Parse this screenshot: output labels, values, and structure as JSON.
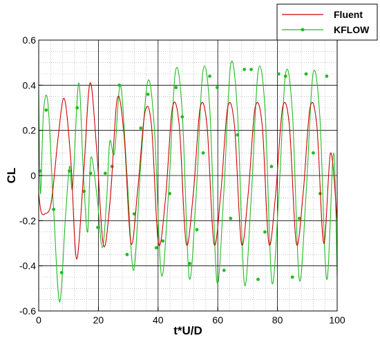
{
  "chart_data": {
    "type": "line",
    "title": "",
    "xlabel": "t*U/D",
    "ylabel": "CL",
    "xlim": [
      0,
      100
    ],
    "ylim": [
      -0.6,
      0.6
    ],
    "x_ticks": [
      0,
      20,
      40,
      60,
      80,
      100
    ],
    "x_tick_labels": [
      "0",
      "20",
      "40",
      "60",
      "80",
      "100"
    ],
    "y_ticks": [
      -0.6,
      -0.4,
      -0.2,
      0,
      0.2,
      0.4,
      0.6
    ],
    "y_tick_labels": [
      "-0.6",
      "-0.4",
      "-0.2",
      "0",
      "0.2",
      "0.4",
      "0.6"
    ],
    "grid": true,
    "legend_position": "top-right-outside",
    "series": [
      {
        "name": "Fluent",
        "color": "#cc0000",
        "marker": "none",
        "x": [
          0,
          0.8,
          2.0,
          4.2,
          6.6,
          8.6,
          10.8,
          12.7,
          15.1,
          17.2,
          19.4,
          21.7,
          24.0,
          26.3,
          28.6,
          30.9,
          33.2,
          35.6,
          37.8,
          40.1,
          42.5,
          44.8,
          47.1,
          49.4,
          51.8,
          54.1,
          56.4,
          58.7,
          61.0,
          63.3,
          65.6,
          67.9,
          70.2,
          72.5,
          74.9,
          77.1,
          79.4,
          81.7,
          84.0,
          86.3,
          88.6,
          90.9,
          93.2,
          95.5,
          97.8,
          100
        ],
        "y": [
          -0.08,
          -0.16,
          -0.17,
          -0.12,
          0.18,
          0.34,
          0.06,
          -0.37,
          0.02,
          0.41,
          0.12,
          -0.31,
          -0.1,
          0.34,
          0.18,
          -0.3,
          -0.06,
          0.28,
          0.22,
          -0.3,
          -0.1,
          0.3,
          0.22,
          -0.3,
          -0.08,
          0.3,
          0.22,
          -0.3,
          -0.08,
          0.3,
          0.22,
          -0.3,
          -0.08,
          0.3,
          0.22,
          -0.3,
          -0.08,
          0.3,
          0.22,
          -0.3,
          -0.08,
          0.3,
          0.22,
          -0.3,
          0.1,
          -0.2
        ]
      },
      {
        "name": "KFLOW",
        "color": "#22bb22",
        "marker": "circle",
        "x": [
          0,
          0.6,
          1.6,
          3.1,
          5.0,
          7.0,
          8.9,
          10.3,
          11.4,
          13.4,
          15.0,
          16.4,
          17.5,
          19.6,
          21.3,
          22.8,
          23.8,
          25.4,
          27.4,
          29.6,
          31.8,
          34.2,
          36.6,
          38.8,
          41.1,
          43.5,
          45.8,
          48.1,
          50.4,
          52.7,
          55.0,
          57.3,
          59.7,
          62.0,
          64.3,
          66.6,
          68.9,
          71.2,
          73.5,
          75.8,
          78.1,
          80.4,
          82.7,
          85.0,
          87.3,
          89.6,
          91.9,
          94.2,
          96.5,
          98.8,
          100
        ],
        "y": [
          0.38,
          -0.08,
          0.28,
          0.32,
          -0.15,
          -0.56,
          -0.2,
          0.04,
          -0.05,
          0.41,
          0.0,
          -0.25,
          0.08,
          -0.1,
          -0.32,
          -0.1,
          0.15,
          0.1,
          0.4,
          0.0,
          -0.42,
          0.05,
          0.42,
          0.2,
          -0.44,
          -0.08,
          0.46,
          0.28,
          -0.45,
          -0.1,
          0.46,
          0.3,
          -0.47,
          -0.08,
          0.49,
          0.28,
          -0.48,
          -0.1,
          0.46,
          0.3,
          -0.47,
          -0.1,
          0.45,
          0.28,
          -0.46,
          -0.08,
          0.45,
          0.26,
          -0.46,
          0.1,
          -0.45
        ],
        "marker_x": [
          0.5,
          2.5,
          5.0,
          7.7,
          10.3,
          12.9,
          15.2,
          17.4,
          19.8,
          22.3,
          24.6,
          27.0,
          29.6,
          32.0,
          34.2,
          36.6,
          39.4,
          41.6,
          43.9,
          46.0,
          48.1,
          50.6,
          53.0,
          55.1,
          57.3,
          59.8,
          62.1,
          64.3,
          66.6,
          68.9,
          71.2,
          73.5,
          75.8,
          78.0,
          80.4,
          82.7,
          85.0,
          87.3,
          89.6,
          92.0,
          94.3,
          96.5
        ],
        "marker_y": [
          0.02,
          0.29,
          -0.15,
          -0.43,
          0.02,
          0.3,
          -0.07,
          0.01,
          -0.23,
          0.01,
          0.04,
          0.4,
          -0.35,
          -0.17,
          0.21,
          0.36,
          -0.32,
          -0.29,
          -0.08,
          0.39,
          0.26,
          -0.39,
          -0.24,
          0.1,
          0.44,
          0.39,
          -0.42,
          -0.19,
          0.18,
          0.47,
          0.47,
          -0.46,
          -0.25,
          0.04,
          0.45,
          0.44,
          -0.45,
          -0.19,
          0.45,
          0.1,
          -0.08,
          0.44
        ]
      }
    ]
  }
}
